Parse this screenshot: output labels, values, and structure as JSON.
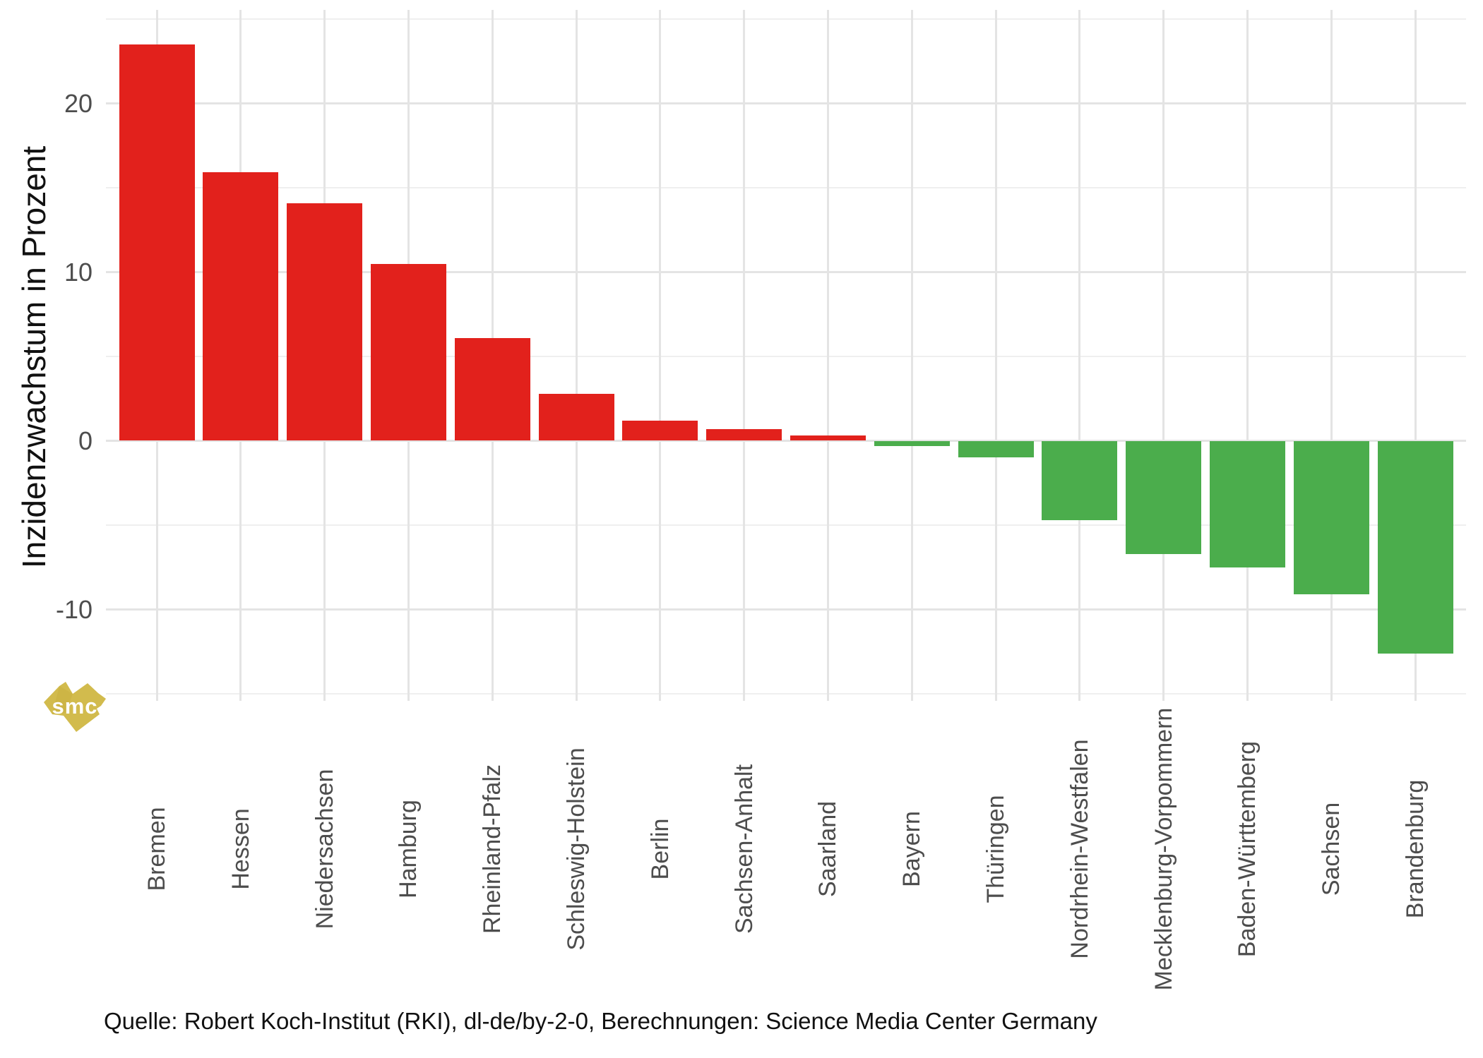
{
  "chart_data": {
    "type": "bar",
    "title": "",
    "xlabel": "",
    "ylabel": "Inzidenzwachstum in Prozent",
    "categories": [
      "Bremen",
      "Hessen",
      "Niedersachsen",
      "Hamburg",
      "Rheinland-Pfalz",
      "Schleswig-Holstein",
      "Berlin",
      "Sachsen-Anhalt",
      "Saarland",
      "Bayern",
      "Thüringen",
      "Nordrhein-Westfalen",
      "Mecklenburg-Vorpommern",
      "Baden-Württemberg",
      "Sachsen",
      "Brandenburg"
    ],
    "values": [
      23.5,
      15.9,
      14.1,
      10.5,
      6.1,
      2.8,
      1.2,
      0.7,
      0.3,
      -0.3,
      -1.0,
      -4.7,
      -6.7,
      -7.5,
      -9.1,
      -12.6
    ],
    "ylim": [
      -15.4,
      25.6
    ],
    "ytick_labels": [
      "20",
      "10",
      "0",
      "-10"
    ],
    "ytick_values": [
      20,
      10,
      0,
      -10
    ],
    "minor_grid_values": [
      25,
      15,
      5,
      -5,
      -15
    ],
    "grid": "on",
    "legend": "none",
    "positive_color": "#e2211c",
    "negative_color": "#4bad4c"
  },
  "colors": {
    "grid_major": "#e4e4e4",
    "grid_minor": "#efefef",
    "axis_text": "#4d4d4d",
    "title_text": "#111111",
    "background": "#ffffff",
    "logo_fill": "#d2bb4d",
    "logo_text": "#ffffff"
  },
  "caption": {
    "text": "Quelle: Robert Koch-Institut (RKI), dl-de/by-2-0, Berechnungen: Science Media Center Germany"
  },
  "logo": {
    "text": "smc"
  }
}
